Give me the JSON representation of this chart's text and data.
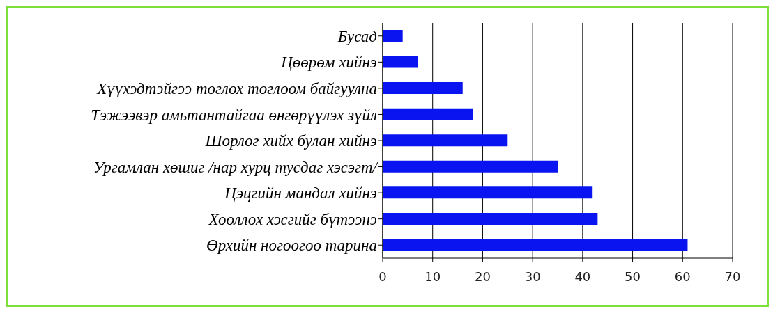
{
  "chart_data": {
    "type": "bar",
    "orientation": "horizontal",
    "categories": [
      "Бусад",
      "Цөөрөм хийнэ",
      "Хүүхэдтэйгээ тоглох тоглоом байгуулна",
      "Тэжээвэр амьтантайгаа өнгөрүүлэх зүйл",
      "Шорлог хийх булан хийнэ",
      "Ургамлан хөшиг /нар хурц тусдаг хэсэгт/",
      "Цэцгийн мандал хийнэ",
      "Хооллох хэсгийг бүтээнэ",
      "Өрхийн ногоогоо тарина"
    ],
    "values": [
      4,
      7,
      16,
      18,
      25,
      35,
      42,
      43,
      61
    ],
    "color": "#0a14f0",
    "xlim": [
      0,
      70
    ],
    "xticks": [
      0,
      10,
      20,
      30,
      40,
      50,
      60,
      70
    ],
    "grid": "x"
  }
}
